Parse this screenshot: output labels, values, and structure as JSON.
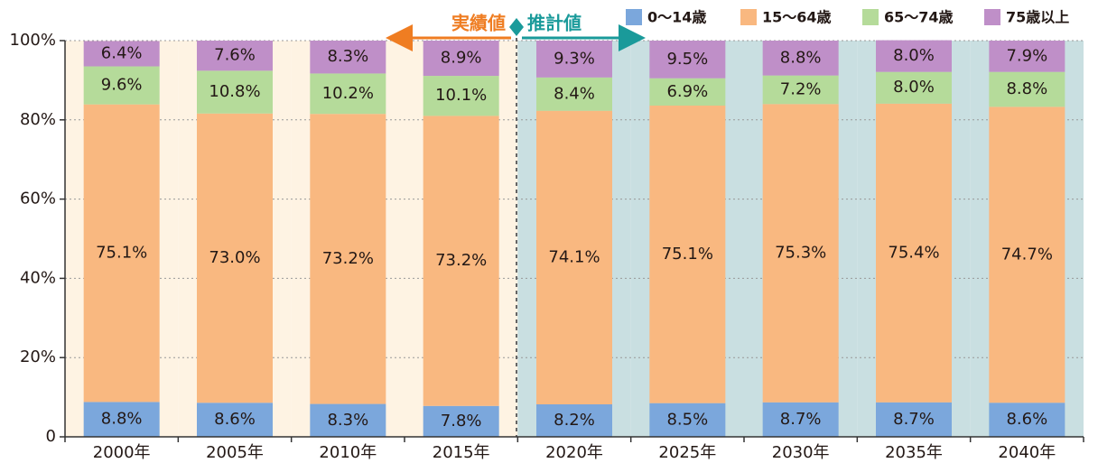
{
  "chart_data": {
    "type": "stacked_bar",
    "categories": [
      "2000年",
      "2005年",
      "2010年",
      "2015年",
      "2020年",
      "2025年",
      "2030年",
      "2035年",
      "2040年"
    ],
    "series": [
      {
        "name": "0〜14歳",
        "color": "#7ba7dc",
        "values": [
          8.8,
          8.6,
          8.3,
          7.8,
          8.2,
          8.5,
          8.7,
          8.7,
          8.6
        ],
        "value_labels": [
          "8.8%",
          "8.6%",
          "8.3%",
          "7.8%",
          "8.2%",
          "8.5%",
          "8.7%",
          "8.7%",
          "8.6%"
        ]
      },
      {
        "name": "15〜64歳",
        "color": "#f9b880",
        "values": [
          75.1,
          73.0,
          73.2,
          73.2,
          74.1,
          75.1,
          75.3,
          75.4,
          74.7
        ],
        "value_labels": [
          "75.1%",
          "73.0%",
          "73.2%",
          "73.2%",
          "74.1%",
          "75.1%",
          "75.3%",
          "75.4%",
          "74.7%"
        ]
      },
      {
        "name": "65〜74歳",
        "color": "#b5db9a",
        "values": [
          9.6,
          10.8,
          10.2,
          10.1,
          8.4,
          6.9,
          7.2,
          8.0,
          8.8
        ],
        "value_labels": [
          "9.6%",
          "10.8%",
          "10.2%",
          "10.1%",
          "8.4%",
          "6.9%",
          "7.2%",
          "8.0%",
          "8.8%"
        ]
      },
      {
        "name": "75歳以上",
        "color": "#bf8fc8",
        "values": [
          6.4,
          7.6,
          8.3,
          8.9,
          9.3,
          9.5,
          8.8,
          8.0,
          7.9
        ],
        "value_labels": [
          "6.4%",
          "7.6%",
          "8.3%",
          "8.9%",
          "9.3%",
          "9.5%",
          "8.8%",
          "8.0%",
          "7.9%"
        ]
      }
    ],
    "ylim": [
      0,
      100
    ],
    "yticks": [
      0,
      {
        "value": 20,
        "label": "20%"
      },
      {
        "value": 40,
        "label": "40%"
      },
      {
        "value": 60,
        "label": "60%"
      },
      {
        "value": 80,
        "label": "80%"
      },
      {
        "value": 100,
        "label": "100%"
      }
    ],
    "grid": true,
    "annotations": [
      "実績値",
      "推計値"
    ],
    "legend": "top-right"
  }
}
